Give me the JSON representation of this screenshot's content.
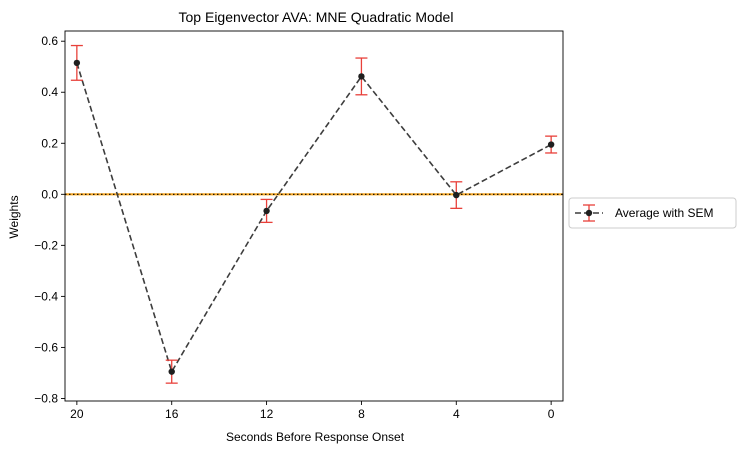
{
  "chart_data": {
    "type": "line",
    "title": "Top Eigenvector AVA: MNE Quadratic Model",
    "xlabel": "Seconds Before Response Onset",
    "ylabel": "Weights",
    "categories": [
      "20",
      "16",
      "12",
      "8",
      "4",
      "0"
    ],
    "xlim": [
      20.5,
      -0.5
    ],
    "ylim": [
      -0.81,
      0.64
    ],
    "yticks": [
      -0.8,
      -0.6,
      -0.4,
      -0.2,
      0.0,
      0.2,
      0.4,
      0.6
    ],
    "ytick_labels": [
      "−0.8",
      "−0.6",
      "−0.4",
      "−0.2",
      "0.0",
      "0.2",
      "0.4",
      "0.6"
    ],
    "series": [
      {
        "name": "Average with SEM",
        "x": [
          20,
          16,
          12,
          8,
          4,
          0
        ],
        "values": [
          0.515,
          -0.695,
          -0.065,
          0.462,
          -0.003,
          0.195
        ],
        "errors": [
          0.068,
          0.045,
          0.045,
          0.072,
          0.052,
          0.033
        ],
        "color": "#3d3d3d",
        "marker_color": "#1f1f1f",
        "error_color": "#e8403a",
        "linestyle": "dashed"
      }
    ],
    "reference_lines": [
      {
        "y": 0.0,
        "color": "#f5a623",
        "linestyle": "solid"
      },
      {
        "y": 0.0,
        "color": "#000000",
        "linestyle": "dotted"
      }
    ],
    "legend": {
      "position": "right-outside",
      "entries": [
        "Average with SEM"
      ]
    },
    "grid": false
  }
}
